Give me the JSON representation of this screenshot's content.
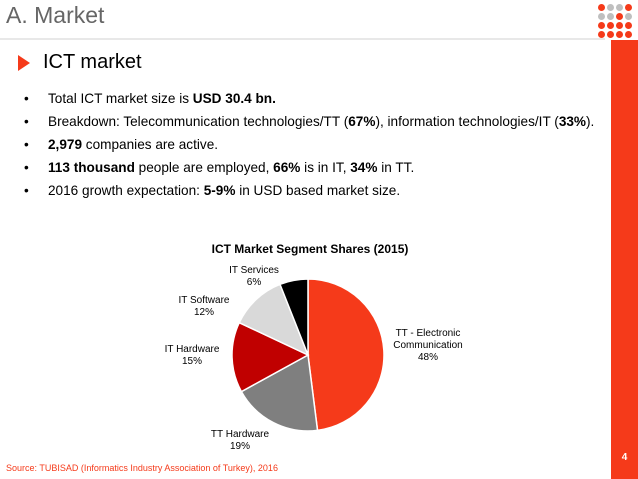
{
  "header": {
    "title": "A. Market",
    "page_number": "4"
  },
  "section": {
    "title": "ICT market"
  },
  "bullets": [
    [
      {
        "t": "Total ICT market size is ",
        "b": false
      },
      {
        "t": "USD 30.4 bn.",
        "b": true
      }
    ],
    [
      {
        "t": "Breakdown: Telecommunication technologies/TT (",
        "b": false
      },
      {
        "t": "67%",
        "b": true
      },
      {
        "t": "), information technologies/IT (",
        "b": false
      },
      {
        "t": "33%",
        "b": true
      },
      {
        "t": ").",
        "b": false
      }
    ],
    [
      {
        "t": "2,979",
        "b": true
      },
      {
        "t": " companies are active.",
        "b": false
      }
    ],
    [
      {
        "t": "113 thousand",
        "b": true
      },
      {
        "t": " people are employed, ",
        "b": false
      },
      {
        "t": "66%",
        "b": true
      },
      {
        "t": " is in IT, ",
        "b": false
      },
      {
        "t": "34%",
        "b": true
      },
      {
        "t": " in TT.",
        "b": false
      }
    ],
    [
      {
        "t": "2016 growth expectation: ",
        "b": false
      },
      {
        "t": "5-9%",
        "b": true
      },
      {
        "t": " in USD based market size.",
        "b": false
      }
    ]
  ],
  "chart_data": {
    "type": "pie",
    "title": "ICT Market Segment Shares (2015)",
    "categories": [
      "TT - Electronic Communication",
      "TT Hardware",
      "IT Hardware",
      "IT Software",
      "IT Services"
    ],
    "values": [
      48,
      19,
      15,
      12,
      6
    ],
    "value_labels": [
      "48%",
      "19%",
      "15%",
      "12%",
      "6%"
    ],
    "colors": [
      "#f53a1a",
      "#7f7f7f",
      "#c00000",
      "#d9d9d9",
      "#000000"
    ],
    "legend": "none"
  },
  "source": "Source: TUBISAD (Informatics Industry Association of Turkey), 2016",
  "colors": {
    "accent": "#f53a1a",
    "title_gray": "#666666"
  }
}
